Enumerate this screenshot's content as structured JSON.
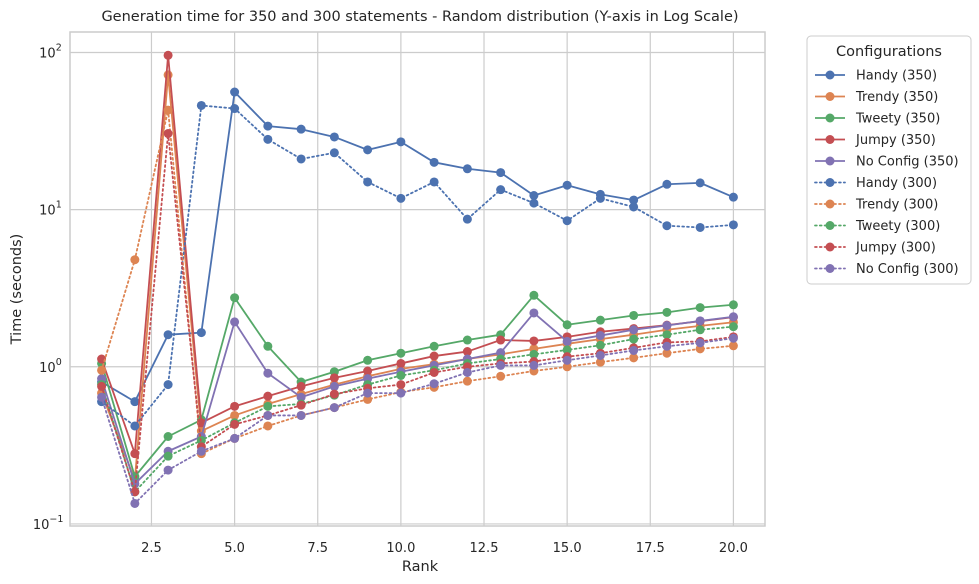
{
  "chart_data": {
    "type": "line",
    "title": "Generation time for 350 and 300 statements - Random distribution (Y-axis in Log Scale)",
    "xlabel": "Rank",
    "ylabel": "Time (seconds)",
    "xlim": [
      0.05,
      20.95
    ],
    "ylim": [
      0.097,
      135
    ],
    "y_scale": "log",
    "grid": true,
    "x_ticks": [
      2.5,
      5.0,
      7.5,
      10.0,
      12.5,
      15.0,
      17.5,
      20.0
    ],
    "x_tick_labels": [
      "2.5",
      "5.0",
      "7.5",
      "10.0",
      "12.5",
      "15.0",
      "17.5",
      "20.0"
    ],
    "y_ticks": [
      0.1,
      1,
      10,
      100
    ],
    "y_tick_labels": [
      {
        "base": "10",
        "exp": "−1"
      },
      {
        "base": "10",
        "exp": "0"
      },
      {
        "base": "10",
        "exp": "1"
      },
      {
        "base": "10",
        "exp": "2"
      }
    ],
    "legend": {
      "title": "Configurations",
      "placement": "outside-right-top"
    },
    "x": [
      1,
      2,
      3,
      4,
      5,
      6,
      7,
      8,
      9,
      10,
      11,
      12,
      13,
      14,
      15,
      16,
      17,
      18,
      19,
      20
    ],
    "series": [
      {
        "name": "Handy (350)",
        "color": "#4c72b0",
        "style": "solid",
        "values": [
          0.8,
          0.6,
          1.6,
          1.65,
          56,
          34,
          32.5,
          29,
          24,
          27,
          20,
          18.2,
          17.2,
          12.3,
          14.3,
          12.5,
          11.5,
          14.5,
          14.8,
          12
        ]
      },
      {
        "name": "Trendy (350)",
        "color": "#dd8452",
        "style": "solid",
        "values": [
          0.68,
          0.19,
          72,
          0.39,
          0.49,
          0.58,
          0.67,
          0.77,
          0.87,
          0.97,
          1.04,
          1.12,
          1.2,
          1.3,
          1.4,
          1.5,
          1.6,
          1.72,
          1.82,
          1.92
        ]
      },
      {
        "name": "Tweety (350)",
        "color": "#55a868",
        "style": "solid",
        "values": [
          1.05,
          0.2,
          0.36,
          0.46,
          2.75,
          1.35,
          0.8,
          0.93,
          1.1,
          1.22,
          1.35,
          1.48,
          1.6,
          2.85,
          1.85,
          1.98,
          2.12,
          2.22,
          2.38,
          2.48
        ]
      },
      {
        "name": "Jumpy (350)",
        "color": "#c44e52",
        "style": "solid",
        "values": [
          1.12,
          0.28,
          96,
          0.44,
          0.56,
          0.65,
          0.75,
          0.85,
          0.94,
          1.05,
          1.17,
          1.25,
          1.48,
          1.46,
          1.55,
          1.67,
          1.75,
          1.84,
          1.95,
          2.07
        ]
      },
      {
        "name": "No Config (350)",
        "color": "#8172b3",
        "style": "solid",
        "values": [
          0.84,
          0.18,
          0.29,
          0.36,
          1.93,
          0.91,
          0.64,
          0.75,
          0.84,
          0.93,
          1.02,
          1.12,
          1.23,
          2.2,
          1.45,
          1.58,
          1.72,
          1.83,
          1.96,
          2.08
        ]
      },
      {
        "name": "Handy (300)",
        "color": "#4c72b0",
        "style": "dotted",
        "values": [
          0.6,
          0.42,
          0.77,
          46,
          44,
          28,
          21,
          23,
          15,
          11.8,
          15,
          8.7,
          13.4,
          11,
          8.5,
          11.8,
          10.4,
          7.9,
          7.7,
          8
        ]
      },
      {
        "name": "Trendy (300)",
        "color": "#dd8452",
        "style": "dotted",
        "values": [
          0.95,
          4.8,
          43,
          0.28,
          0.35,
          0.42,
          0.49,
          0.55,
          0.62,
          0.69,
          0.74,
          0.81,
          0.87,
          0.94,
          1.0,
          1.07,
          1.14,
          1.22,
          1.3,
          1.36
        ]
      },
      {
        "name": "Tweety (300)",
        "color": "#55a868",
        "style": "dotted",
        "values": [
          0.77,
          0.16,
          0.27,
          0.34,
          0.44,
          0.56,
          0.58,
          0.66,
          0.77,
          0.88,
          0.95,
          1.05,
          1.12,
          1.2,
          1.28,
          1.37,
          1.5,
          1.6,
          1.72,
          1.8
        ]
      },
      {
        "name": "Jumpy (300)",
        "color": "#c44e52",
        "style": "dotted",
        "values": [
          0.75,
          0.16,
          30.5,
          0.31,
          0.43,
          0.49,
          0.57,
          0.67,
          0.73,
          0.77,
          0.92,
          1.0,
          1.05,
          1.08,
          1.16,
          1.22,
          1.32,
          1.43,
          1.45,
          1.55
        ]
      },
      {
        "name": "No Config (300)",
        "color": "#8172b3",
        "style": "dotted",
        "values": [
          0.64,
          0.135,
          0.22,
          0.29,
          0.35,
          0.49,
          0.49,
          0.55,
          0.68,
          0.68,
          0.78,
          0.92,
          1.02,
          1.02,
          1.1,
          1.18,
          1.27,
          1.35,
          1.42,
          1.52
        ]
      }
    ]
  }
}
